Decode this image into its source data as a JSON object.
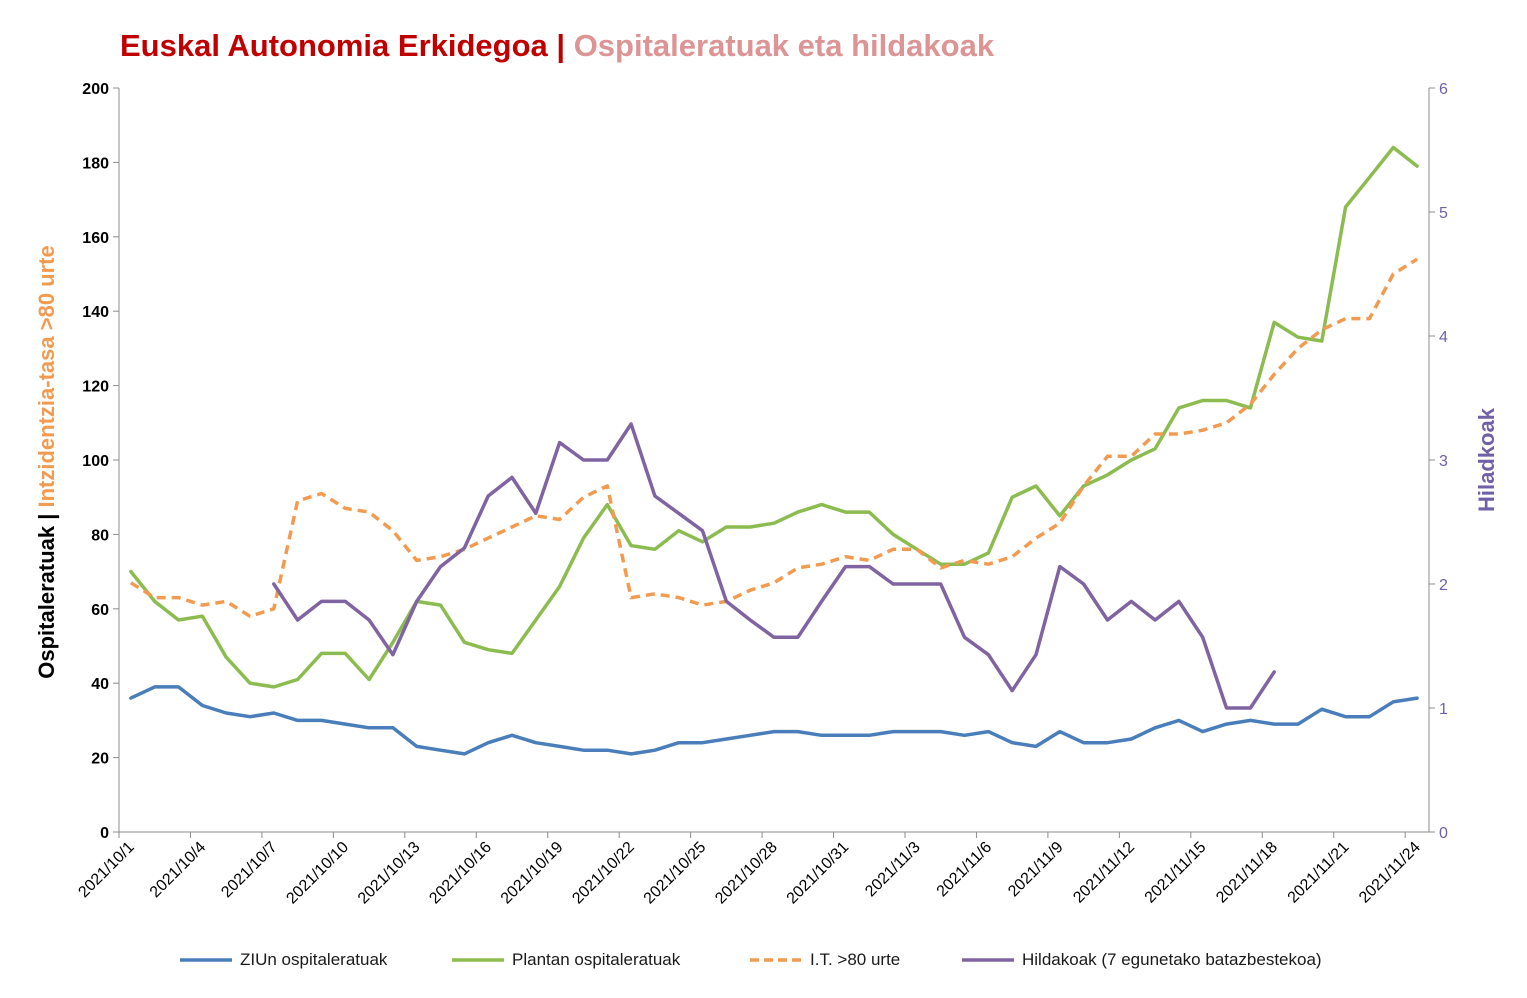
{
  "title": {
    "part1": "Euskal Autonomia Erkidegoa | ",
    "part2": "Ospitaleratuak eta hildakoak"
  },
  "colors": {
    "zliun": "#4a7ebb",
    "plantan": "#8cbc4f",
    "it80": "#f29b50",
    "hildakoak": "#8064a2",
    "title1": "#c00000",
    "title2": "#dd9494",
    "axis_left": "#000000",
    "axis_right": "#7060a8"
  },
  "chart_data": {
    "type": "line",
    "title": "Euskal Autonomia Erkidegoa | Ospitaleratuak eta hildakoak",
    "y_left_label_part1": "Ospitaleratuak | ",
    "y_left_label_part2": "Intzidentzia-tasa >80 urte",
    "y_right_label": "Hiladkoak",
    "y_left_lim": [
      0,
      200
    ],
    "y_left_ticks": [
      0,
      20,
      40,
      60,
      80,
      100,
      120,
      140,
      160,
      180,
      200
    ],
    "y_right_lim": [
      0,
      6
    ],
    "y_right_ticks": [
      0,
      1,
      2,
      3,
      4,
      5,
      6
    ],
    "x_tick_labels": [
      "2021/10/1",
      "2021/10/4",
      "2021/10/7",
      "2021/10/10",
      "2021/10/13",
      "2021/10/16",
      "2021/10/19",
      "2021/10/22",
      "2021/10/25",
      "2021/10/28",
      "2021/10/31",
      "2021/11/3",
      "2021/11/6",
      "2021/11/9",
      "2021/11/12",
      "2021/11/15",
      "2021/11/18",
      "2021/11/21",
      "2021/11/24"
    ],
    "x_tick_indices": [
      0,
      3,
      6,
      9,
      12,
      15,
      18,
      21,
      24,
      27,
      30,
      33,
      36,
      39,
      42,
      45,
      48,
      51,
      54
    ],
    "grid": false,
    "legend_position": "bottom",
    "series": [
      {
        "name": "ZIUn ospitaleratuak",
        "axis": "left",
        "style": "solid",
        "values": [
          36,
          39,
          39,
          34,
          32,
          31,
          32,
          30,
          30,
          29,
          28,
          28,
          23,
          22,
          21,
          24,
          26,
          24,
          23,
          22,
          22,
          21,
          22,
          24,
          24,
          25,
          26,
          27,
          27,
          26,
          26,
          26,
          27,
          27,
          27,
          26,
          27,
          24,
          23,
          27,
          24,
          24,
          25,
          28,
          30,
          27,
          29,
          30,
          29,
          29,
          33,
          31,
          31,
          35,
          36
        ]
      },
      {
        "name": "Plantan ospitaleratuak",
        "axis": "left",
        "style": "solid",
        "values": [
          70,
          62,
          57,
          58,
          47,
          40,
          39,
          41,
          48,
          48,
          41,
          51,
          62,
          61,
          51,
          49,
          48,
          57,
          66,
          79,
          88,
          77,
          76,
          81,
          78,
          82,
          82,
          83,
          86,
          88,
          86,
          86,
          80,
          76,
          72,
          72,
          75,
          90,
          93,
          85,
          93,
          96,
          100,
          103,
          114,
          116,
          116,
          114,
          137,
          133,
          132,
          168,
          176,
          184,
          179
        ]
      },
      {
        "name": "I.T. >80 urte",
        "axis": "left",
        "style": "dashed",
        "values": [
          67,
          63,
          63,
          61,
          62,
          58,
          60,
          89,
          91,
          87,
          86,
          81,
          73,
          74,
          76,
          79,
          82,
          85,
          84,
          90,
          93,
          63,
          64,
          63,
          61,
          62,
          65,
          67,
          71,
          72,
          74,
          73,
          76,
          76,
          71,
          73,
          72,
          74,
          79,
          83,
          93,
          101,
          101,
          107,
          107,
          108,
          110,
          115,
          123,
          130,
          135,
          138,
          138,
          150,
          154
        ]
      },
      {
        "name": "Hildakoak (7 egunetako batazbestekoa)",
        "axis": "right",
        "style": "solid",
        "values": [
          null,
          null,
          null,
          null,
          null,
          null,
          2.0,
          1.71,
          1.86,
          1.86,
          1.71,
          1.43,
          1.86,
          2.14,
          2.29,
          2.71,
          2.86,
          2.57,
          3.14,
          3.0,
          3.0,
          3.29,
          2.71,
          2.57,
          2.43,
          1.86,
          1.71,
          1.57,
          1.57,
          1.86,
          2.14,
          2.14,
          2.0,
          2.0,
          2.0,
          1.57,
          1.43,
          1.14,
          1.43,
          2.14,
          2.0,
          1.71,
          1.86,
          1.71,
          1.86,
          1.57,
          1.0,
          1.0,
          1.29,
          null,
          null,
          null,
          null,
          null,
          null
        ]
      }
    ]
  }
}
